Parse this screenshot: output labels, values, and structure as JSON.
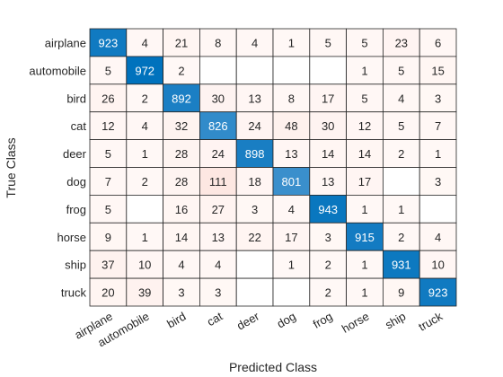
{
  "chart_data": {
    "type": "heatmap",
    "title": "",
    "xlabel": "Predicted Class",
    "ylabel": "True Class",
    "rows": [
      "airplane",
      "automobile",
      "bird",
      "cat",
      "deer",
      "dog",
      "frog",
      "horse",
      "ship",
      "truck"
    ],
    "columns": [
      "airplane",
      "automobile",
      "bird",
      "cat",
      "deer",
      "dog",
      "frog",
      "horse",
      "ship",
      "truck"
    ],
    "values": [
      [
        923,
        4,
        21,
        8,
        4,
        1,
        5,
        5,
        23,
        6
      ],
      [
        5,
        972,
        2,
        null,
        null,
        null,
        null,
        1,
        5,
        15
      ],
      [
        26,
        2,
        892,
        30,
        13,
        8,
        17,
        5,
        4,
        3
      ],
      [
        12,
        4,
        32,
        826,
        24,
        48,
        30,
        12,
        5,
        7
      ],
      [
        5,
        1,
        28,
        24,
        898,
        13,
        14,
        14,
        2,
        1
      ],
      [
        7,
        2,
        28,
        111,
        18,
        801,
        13,
        17,
        null,
        3
      ],
      [
        5,
        null,
        16,
        27,
        3,
        4,
        943,
        1,
        1,
        null
      ],
      [
        9,
        1,
        14,
        13,
        22,
        17,
        3,
        915,
        2,
        4
      ],
      [
        37,
        10,
        4,
        4,
        null,
        1,
        2,
        1,
        931,
        10
      ],
      [
        20,
        39,
        3,
        3,
        null,
        null,
        2,
        1,
        9,
        923
      ]
    ],
    "colors": {
      "diagonal_high": "#0072bd",
      "diagonal_low": "#3a8fcc",
      "offdiag_tint": "#fde7e2",
      "empty": "#ffffff",
      "grid": "#262626"
    }
  }
}
